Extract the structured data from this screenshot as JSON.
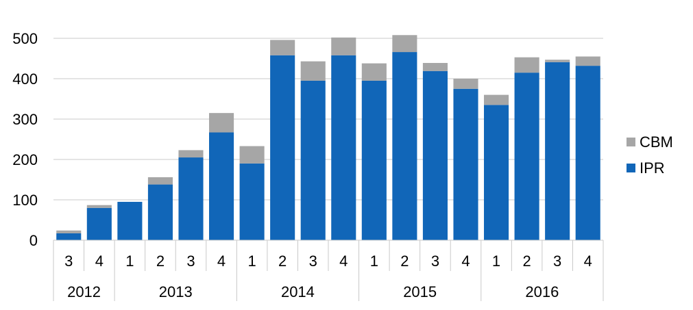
{
  "chart_data": {
    "type": "bar",
    "stacked": true,
    "categories": [
      [
        "2012",
        "3"
      ],
      [
        "2012",
        "4"
      ],
      [
        "2013",
        "1"
      ],
      [
        "2013",
        "2"
      ],
      [
        "2013",
        "3"
      ],
      [
        "2013",
        "4"
      ],
      [
        "2014",
        "1"
      ],
      [
        "2014",
        "2"
      ],
      [
        "2014",
        "3"
      ],
      [
        "2014",
        "4"
      ],
      [
        "2015",
        "1"
      ],
      [
        "2015",
        "2"
      ],
      [
        "2015",
        "3"
      ],
      [
        "2015",
        "4"
      ],
      [
        "2016",
        "1"
      ],
      [
        "2016",
        "2"
      ],
      [
        "2016",
        "3"
      ],
      [
        "2016",
        "4"
      ]
    ],
    "quarters": [
      "3",
      "4",
      "1",
      "2",
      "3",
      "4",
      "1",
      "2",
      "3",
      "4",
      "1",
      "2",
      "3",
      "4",
      "1",
      "2",
      "3",
      "4"
    ],
    "years": [
      "2012",
      "2013",
      "2014",
      "2015",
      "2016"
    ],
    "series": [
      {
        "name": "IPR",
        "color": "#1166b8",
        "values": [
          17,
          80,
          95,
          138,
          205,
          267,
          190,
          458,
          395,
          458,
          395,
          466,
          419,
          375,
          335,
          415,
          441,
          432
        ]
      },
      {
        "name": "CBM",
        "color": "#a6a6a6",
        "values": [
          7,
          7,
          0,
          18,
          18,
          48,
          43,
          38,
          48,
          44,
          43,
          42,
          20,
          25,
          25,
          38,
          6,
          23
        ]
      }
    ],
    "ylim": [
      0,
      500
    ],
    "yticks": [
      0,
      100,
      200,
      300,
      400,
      500
    ],
    "grid": true,
    "legend_position": "right",
    "legend_order": [
      "CBM",
      "IPR"
    ],
    "title": "",
    "xlabel": "",
    "ylabel": ""
  }
}
